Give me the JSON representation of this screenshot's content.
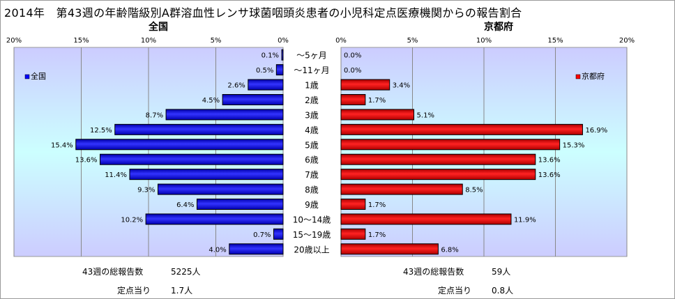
{
  "title": "2014年　第43週の年齢階級別A群溶血性レンサ球菌咽頭炎患者の小児科定点医療機関からの報告割合",
  "chart_data": [
    {
      "type": "bar",
      "orientation": "horizontal",
      "direction": "right-to-left",
      "title": "全国",
      "categories": [
        "～5ヶ月",
        "～11ヶ月",
        "1歳",
        "2歳",
        "3歳",
        "4歳",
        "5歳",
        "6歳",
        "7歳",
        "8歳",
        "9歳",
        "10～14歳",
        "15～19歳",
        "20歳以上"
      ],
      "series": [
        {
          "name": "全国",
          "values": [
            0.1,
            0.5,
            2.6,
            4.5,
            8.7,
            12.5,
            15.4,
            13.6,
            11.4,
            9.3,
            6.4,
            10.2,
            0.7,
            4.0
          ],
          "color": "#0000ff"
        }
      ],
      "value_labels": [
        "0.1%",
        "0.5%",
        "2.6%",
        "4.5%",
        "8.7%",
        "12.5%",
        "15.4%",
        "13.6%",
        "11.4%",
        "9.3%",
        "6.4%",
        "10.2%",
        "0.7%",
        "4.0%"
      ],
      "xlim": [
        0,
        20
      ],
      "xticks": [
        "0%",
        "5%",
        "10%",
        "15%",
        "20%"
      ],
      "grid": true,
      "legend_position": "top-left"
    },
    {
      "type": "bar",
      "orientation": "horizontal",
      "direction": "left-to-right",
      "title": "京都府",
      "categories": [
        "～5ヶ月",
        "～11ヶ月",
        "1歳",
        "2歳",
        "3歳",
        "4歳",
        "5歳",
        "6歳",
        "7歳",
        "8歳",
        "9歳",
        "10～14歳",
        "15～19歳",
        "20歳以上"
      ],
      "series": [
        {
          "name": "京都府",
          "values": [
            0.0,
            0.0,
            3.4,
            1.7,
            5.1,
            16.9,
            15.3,
            13.6,
            13.6,
            8.5,
            1.7,
            11.9,
            1.7,
            6.8
          ],
          "color": "#ff0000"
        }
      ],
      "value_labels": [
        "0.0%",
        "0.0%",
        "3.4%",
        "1.7%",
        "5.1%",
        "16.9%",
        "15.3%",
        "13.6%",
        "13.6%",
        "8.5%",
        "1.7%",
        "11.9%",
        "1.7%",
        "6.8%"
      ],
      "xlim": [
        0,
        20
      ],
      "xticks": [
        "0%",
        "5%",
        "10%",
        "15%",
        "20%"
      ],
      "grid": true,
      "legend_position": "top-right"
    }
  ],
  "footer": {
    "national": {
      "total_label": "43週の総報告数",
      "total_value": "5225人",
      "per_label": "定点当り",
      "per_value": "1.7人"
    },
    "kyoto": {
      "total_label": "43週の総報告数",
      "total_value": "59人",
      "per_label": "定点当り",
      "per_value": "0.8人"
    }
  }
}
